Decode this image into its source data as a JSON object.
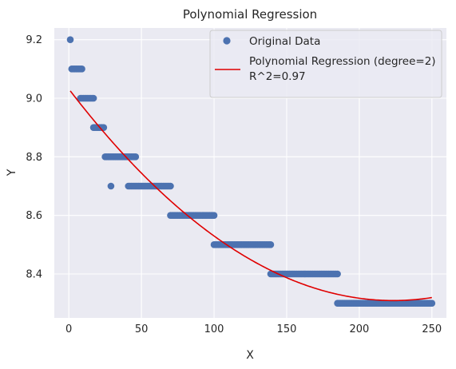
{
  "chart_data": {
    "type": "scatter",
    "title": "Polynomial Regression",
    "xlabel": "X",
    "ylabel": "Y",
    "xlim": [
      -10,
      260
    ],
    "ylim": [
      8.25,
      9.24
    ],
    "xticks": [
      0,
      50,
      100,
      150,
      200,
      250
    ],
    "yticks": [
      8.4,
      8.6,
      8.8,
      9.0,
      9.2
    ],
    "ytick_labels": [
      "8.4",
      "8.6",
      "8.8",
      "9.0",
      "9.2"
    ],
    "grid": true,
    "legend_position": "top-right",
    "series": [
      {
        "name": "Original Data",
        "kind": "points",
        "color": "#4c72b0",
        "runs": [
          {
            "x_start": 1,
            "x_end": 1,
            "y": 9.2
          },
          {
            "x_start": 2,
            "x_end": 9,
            "y": 9.1
          },
          {
            "x_start": 8,
            "x_end": 17,
            "y": 9.0
          },
          {
            "x_start": 17,
            "x_end": 24,
            "y": 8.9
          },
          {
            "x_start": 25,
            "x_end": 46,
            "y": 8.8
          },
          {
            "x_start": 29,
            "x_end": 29,
            "y": 8.7
          },
          {
            "x_start": 41,
            "x_end": 70,
            "y": 8.7
          },
          {
            "x_start": 70,
            "x_end": 100,
            "y": 8.6
          },
          {
            "x_start": 100,
            "x_end": 139,
            "y": 8.5
          },
          {
            "x_start": 139,
            "x_end": 185,
            "y": 8.4
          },
          {
            "x_start": 185,
            "x_end": 250,
            "y": 8.3
          }
        ]
      },
      {
        "name": "Polynomial Regression (degree=2)",
        "name_line2": "R^2=0.97",
        "kind": "line",
        "color": "#e00000",
        "poly_degree": 2,
        "x_range": [
          1,
          250
        ],
        "coefficients": [
          9.0315,
          -0.006466,
          1.447e-05
        ]
      }
    ]
  }
}
